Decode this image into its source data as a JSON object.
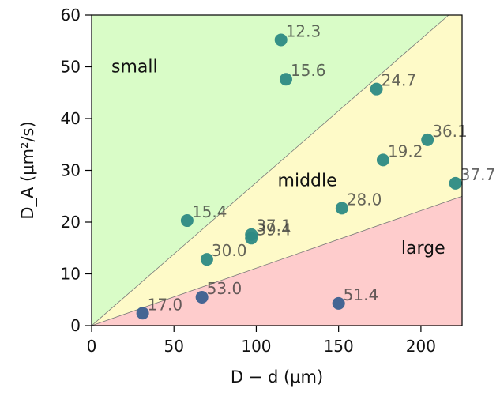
{
  "chart_data": {
    "type": "scatter",
    "title": "",
    "xlabel": "D − d (μm)",
    "ylabel": "D_A (μm²/s)",
    "xlim": [
      0,
      225
    ],
    "ylim": [
      0,
      60
    ],
    "x_ticks": [
      0,
      50,
      100,
      150,
      200
    ],
    "y_ticks": [
      0,
      10,
      20,
      30,
      40,
      50,
      60
    ],
    "grid": false,
    "regions": [
      {
        "name": "small",
        "color": "#d9fcc7"
      },
      {
        "name": "middle",
        "color": "#fefac8"
      },
      {
        "name": "large",
        "color": "#fecccc"
      }
    ],
    "boundaries": [
      {
        "x": [
          0,
          225
        ],
        "y": [
          0,
          62.25
        ]
      },
      {
        "x": [
          0,
          225
        ],
        "y": [
          0,
          25
        ]
      }
    ],
    "points": [
      {
        "x": 115,
        "y": 55.2,
        "label": "12.3",
        "color": "#2d8a84"
      },
      {
        "x": 118,
        "y": 47.6,
        "label": "15.6",
        "color": "#2d8a84"
      },
      {
        "x": 173,
        "y": 45.7,
        "label": "24.7",
        "color": "#2d8a84"
      },
      {
        "x": 204,
        "y": 35.9,
        "label": "36.1",
        "color": "#2d8a84"
      },
      {
        "x": 177,
        "y": 32.0,
        "label": "19.2",
        "color": "#2d8a84"
      },
      {
        "x": 221,
        "y": 27.5,
        "label": "37.7",
        "color": "#2d8a84"
      },
      {
        "x": 152,
        "y": 22.7,
        "label": "28.0",
        "color": "#2d8a84"
      },
      {
        "x": 58,
        "y": 20.3,
        "label": "15.4",
        "color": "#2d8a84"
      },
      {
        "x": 97,
        "y": 17.6,
        "label": "37.1",
        "color": "#2d8a84"
      },
      {
        "x": 97,
        "y": 16.9,
        "label": "39.4",
        "color": "#2d8a84"
      },
      {
        "x": 70,
        "y": 12.8,
        "label": "30.0",
        "color": "#2d8a84"
      },
      {
        "x": 67,
        "y": 5.5,
        "label": "53.0",
        "color": "#3b5f8f"
      },
      {
        "x": 150,
        "y": 4.3,
        "label": "51.4",
        "color": "#3b5f8f"
      },
      {
        "x": 31,
        "y": 2.4,
        "label": "17.0",
        "color": "#3b5f8f"
      }
    ]
  }
}
